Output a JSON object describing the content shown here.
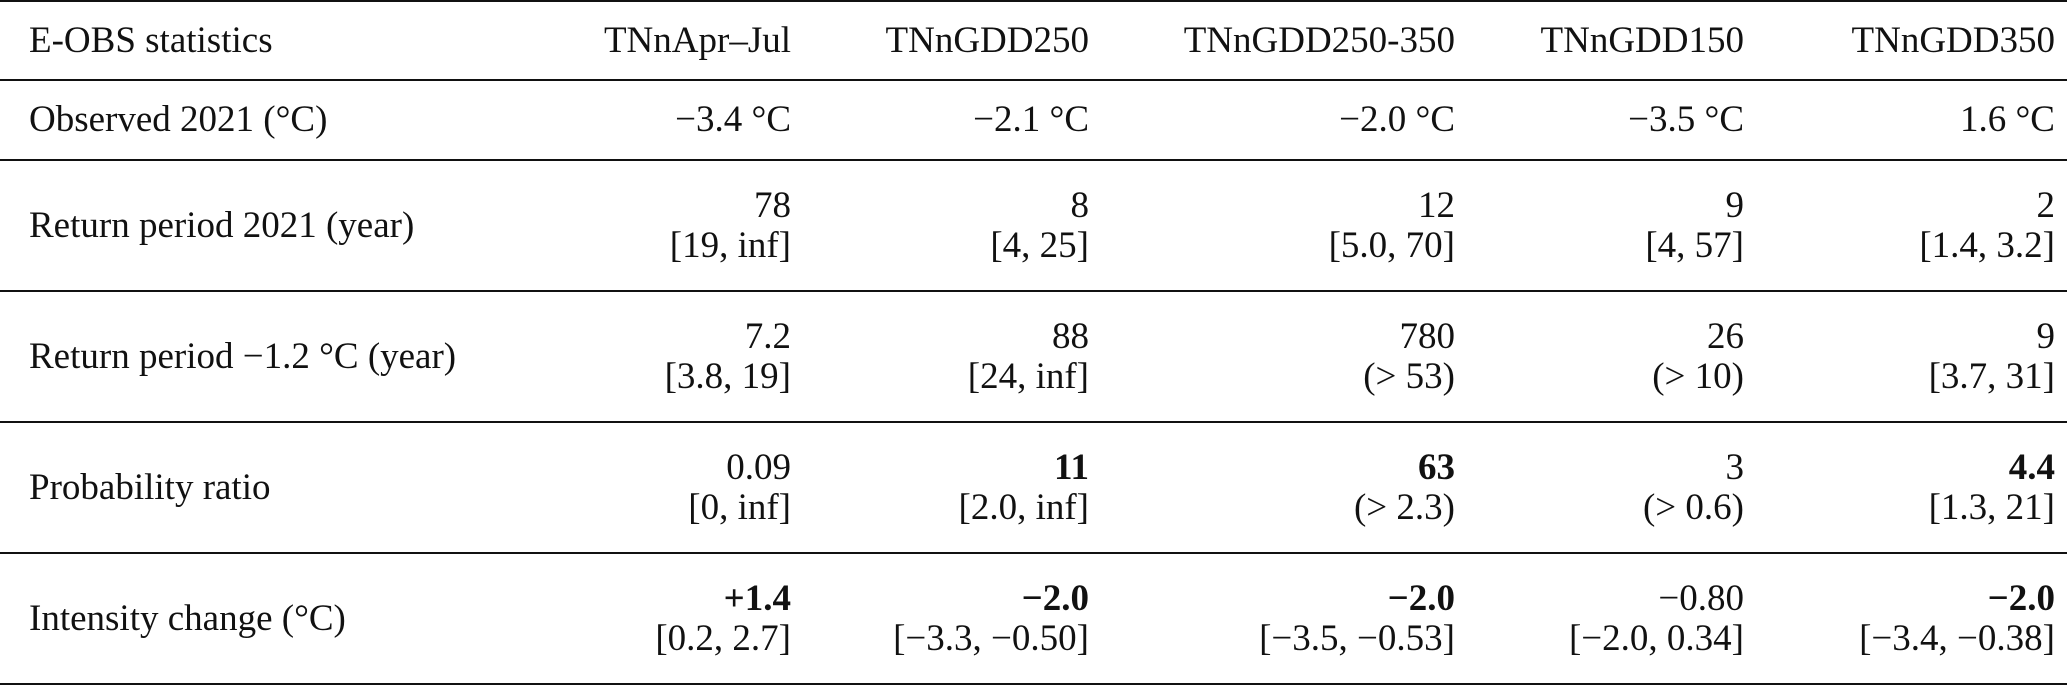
{
  "table": {
    "header": [
      "E-OBS statistics",
      "TNnApr–Jul",
      "TNnGDD250",
      "TNnGDD250-350",
      "TNnGDD150",
      "TNnGDD350"
    ],
    "rows": [
      {
        "label": "Observed 2021 (°C)",
        "cells": [
          {
            "main": "−3.4 °C",
            "bold": false
          },
          {
            "main": "−2.1 °C",
            "bold": false
          },
          {
            "main": "−2.0 °C",
            "bold": false
          },
          {
            "main": "−3.5 °C",
            "bold": false
          },
          {
            "main": "1.6 °C",
            "bold": false
          }
        ]
      },
      {
        "label": "Return period 2021 (year)",
        "cells": [
          {
            "main": "78",
            "sub": "[19, inf]",
            "bold": false
          },
          {
            "main": "8",
            "sub": "[4, 25]",
            "bold": false
          },
          {
            "main": "12",
            "sub": "[5.0, 70]",
            "bold": false
          },
          {
            "main": "9",
            "sub": "[4, 57]",
            "bold": false
          },
          {
            "main": "2",
            "sub": "[1.4, 3.2]",
            "bold": false
          }
        ]
      },
      {
        "label": "Return period −1.2 °C (year)",
        "cells": [
          {
            "main": "7.2",
            "sub": "[3.8, 19]",
            "bold": false
          },
          {
            "main": "88",
            "sub": "[24, inf]",
            "bold": false
          },
          {
            "main": "780",
            "sub": "(> 53)",
            "bold": false
          },
          {
            "main": "26",
            "sub": "(> 10)",
            "bold": false
          },
          {
            "main": "9",
            "sub": "[3.7, 31]",
            "bold": false
          }
        ]
      },
      {
        "label": "Probability ratio",
        "cells": [
          {
            "main": "0.09",
            "sub": "[0, inf]",
            "bold": false
          },
          {
            "main": "11",
            "sub": "[2.0, inf]",
            "bold": true
          },
          {
            "main": "63",
            "sub": "(> 2.3)",
            "bold": true
          },
          {
            "main": "3",
            "sub": "(> 0.6)",
            "bold": false
          },
          {
            "main": "4.4",
            "sub": "[1.3, 21]",
            "bold": true
          }
        ]
      },
      {
        "label": "Intensity change (°C)",
        "cells": [
          {
            "main": "+1.4",
            "sub": "[0.2, 2.7]",
            "bold": true
          },
          {
            "main": "−2.0",
            "sub": "[−3.3, −0.50]",
            "bold": true
          },
          {
            "main": "−2.0",
            "sub": "[−3.5, −0.53]",
            "bold": true
          },
          {
            "main": "−0.80",
            "sub": "[−2.0, 0.34]",
            "bold": false
          },
          {
            "main": "−2.0",
            "sub": "[−3.4, −0.38]",
            "bold": true
          }
        ]
      }
    ]
  }
}
